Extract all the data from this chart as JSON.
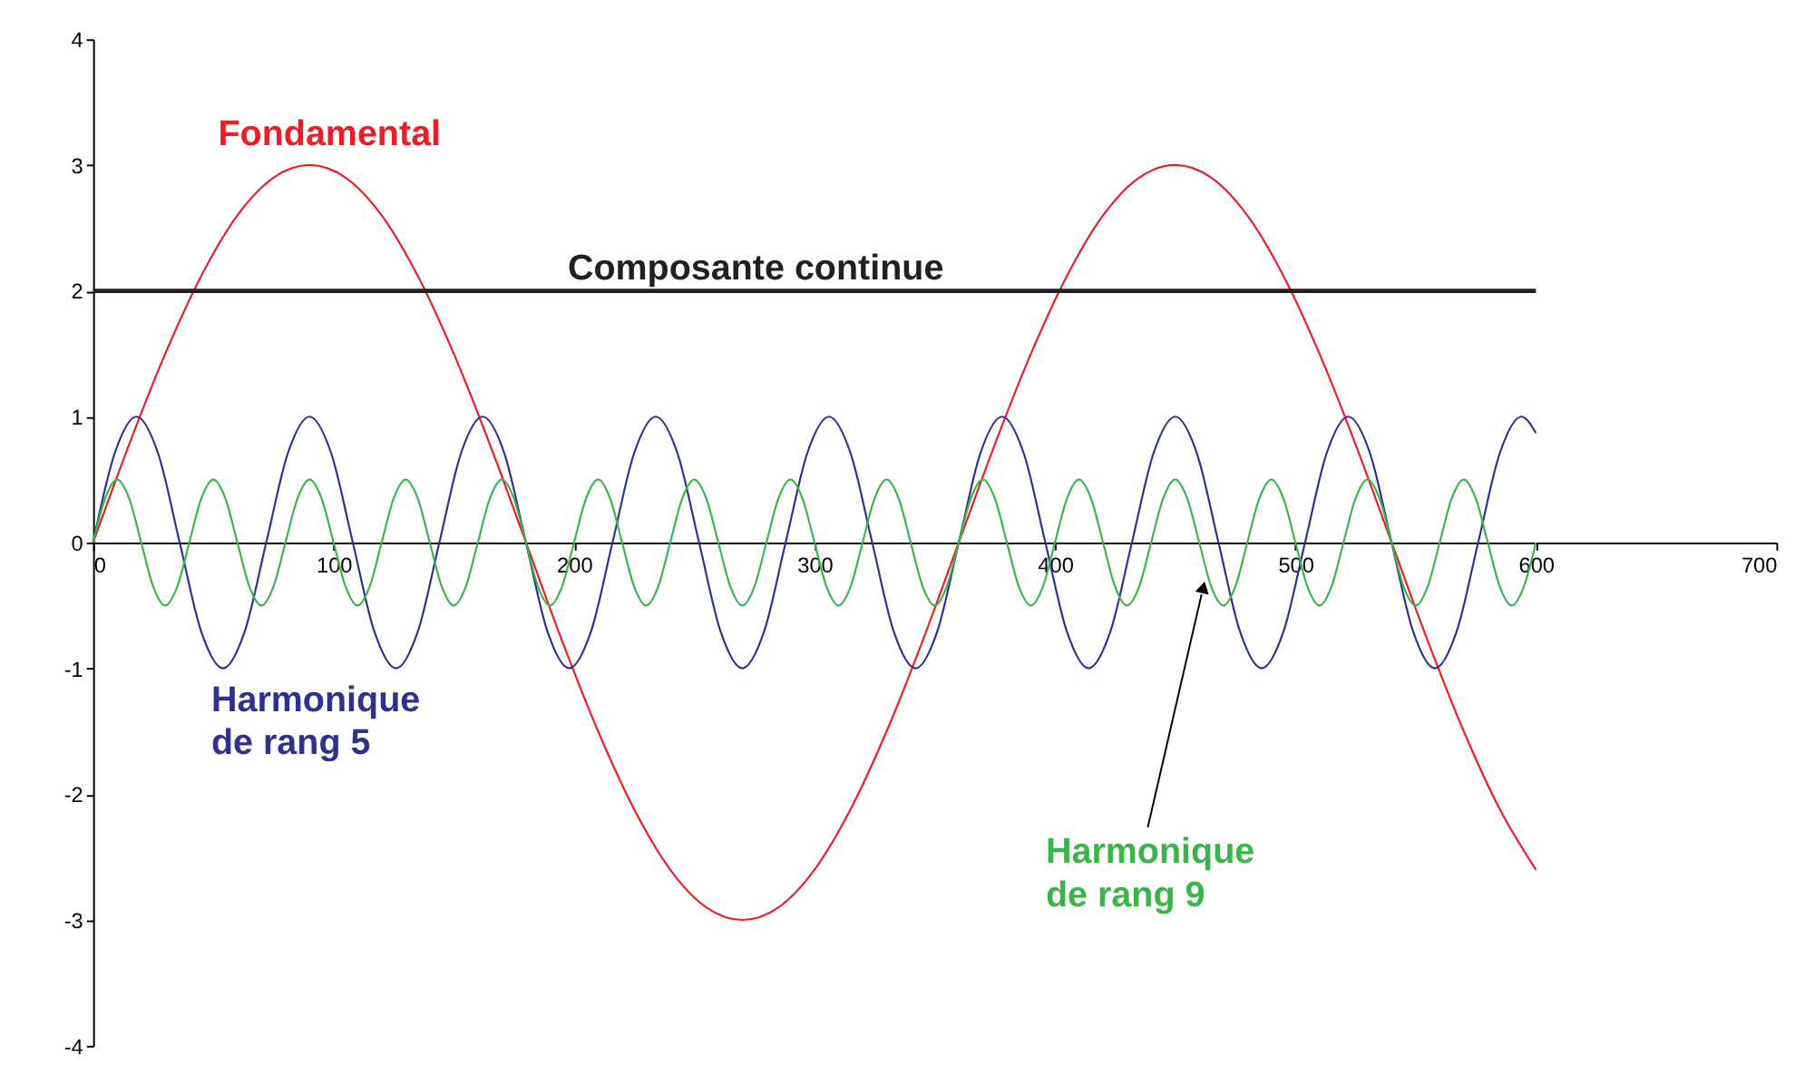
{
  "chart_data": {
    "type": "line",
    "xlim": [
      0,
      700
    ],
    "xticks": [
      0,
      100,
      200,
      300,
      400,
      500,
      600,
      700
    ],
    "ylim": [
      -4,
      4
    ],
    "yticks": [
      -4,
      -3,
      -2,
      -1,
      0,
      1,
      2,
      3,
      4
    ],
    "grid": false,
    "series": [
      {
        "name": "Fondamental",
        "color": "#ee1c25",
        "x": [
          0,
          15,
          30,
          45,
          60,
          75,
          90,
          105,
          120,
          135,
          150,
          165,
          180,
          195,
          210,
          225,
          240,
          255,
          270,
          285,
          300,
          315,
          330,
          345,
          360,
          375,
          390,
          405,
          420,
          435,
          450,
          465,
          480,
          495,
          510,
          525,
          540,
          555,
          570,
          585,
          600
        ],
        "values": [
          0,
          0.78,
          1.5,
          2.12,
          2.6,
          2.9,
          3,
          2.9,
          2.6,
          2.12,
          1.5,
          0.78,
          0,
          -0.78,
          -1.5,
          -2.12,
          -2.6,
          -2.9,
          -3,
          -2.9,
          -2.6,
          -2.12,
          -1.5,
          -0.78,
          0,
          0.78,
          1.5,
          2.12,
          2.6,
          2.9,
          3,
          2.9,
          2.6,
          2.12,
          1.5,
          0.78,
          0,
          -0.78,
          -1.5,
          -2.12,
          -2.6
        ]
      },
      {
        "name": "Composante continue",
        "color": "#231f20",
        "x": [
          0,
          600
        ],
        "values": [
          2,
          2
        ]
      },
      {
        "name": "Harmonique de rang 5",
        "color": "#2e3192",
        "x": [
          0,
          9,
          18,
          27,
          36,
          45,
          54,
          63,
          72,
          81,
          90,
          99,
          108,
          117,
          126,
          135,
          144,
          153,
          162,
          171,
          180,
          189,
          198,
          207,
          216,
          225,
          234,
          243,
          252,
          261,
          270,
          279,
          288,
          297,
          306,
          315,
          324,
          333,
          342,
          351,
          360,
          369,
          378,
          387,
          396,
          405,
          414,
          423,
          432,
          441,
          450,
          459,
          468,
          477,
          486,
          495,
          504,
          513,
          522,
          531,
          540,
          549,
          558,
          567,
          576,
          585,
          594,
          600
        ],
        "values": [
          0,
          0.71,
          1,
          0.71,
          0,
          -0.71,
          -1,
          -0.71,
          0,
          0.71,
          1,
          0.71,
          0,
          -0.71,
          -1,
          -0.71,
          0,
          0.71,
          1,
          0.71,
          0,
          -0.71,
          -1,
          -0.71,
          0,
          0.71,
          1,
          0.71,
          0,
          -0.71,
          -1,
          -0.71,
          0,
          0.71,
          1,
          0.71,
          0,
          -0.71,
          -1,
          -0.71,
          0,
          0.71,
          1,
          0.71,
          0,
          -0.71,
          -1,
          -0.71,
          0,
          0.71,
          1,
          0.71,
          0,
          -0.71,
          -1,
          -0.71,
          0,
          0.71,
          1,
          0.71,
          0,
          -0.71,
          -1,
          -0.71,
          0,
          0.71,
          1,
          0.87
        ]
      },
      {
        "name": "Harmonique de rang 9",
        "color": "#39b54a",
        "x": [
          0,
          5,
          10,
          15,
          20,
          25,
          30,
          35,
          40,
          45,
          50,
          55,
          60,
          65,
          70,
          75,
          80,
          85,
          90,
          95,
          100,
          105,
          110,
          115,
          120,
          125,
          130,
          135,
          140,
          145,
          150,
          155,
          160,
          165,
          170,
          175,
          180,
          185,
          190,
          195,
          200,
          205,
          210,
          215,
          220,
          225,
          230,
          235,
          240,
          245,
          250,
          255,
          260,
          265,
          270,
          275,
          280,
          285,
          290,
          295,
          300,
          305,
          310,
          315,
          320,
          325,
          330,
          335,
          340,
          345,
          350,
          355,
          360,
          365,
          370,
          375,
          380,
          385,
          390,
          395,
          400,
          405,
          410,
          415,
          420,
          425,
          430,
          435,
          440,
          445,
          450,
          455,
          460,
          465,
          470,
          475,
          480,
          485,
          490,
          495,
          500,
          505,
          510,
          515,
          520,
          525,
          530,
          535,
          540,
          545,
          550,
          555,
          560,
          565,
          570,
          575,
          580,
          585,
          590,
          595,
          600
        ],
        "values": [
          0,
          0.35,
          0.5,
          0.35,
          0,
          -0.35,
          -0.5,
          -0.35,
          0,
          0.35,
          0.5,
          0.35,
          0,
          -0.35,
          -0.5,
          -0.35,
          0,
          0.35,
          0.5,
          0.35,
          0,
          -0.35,
          -0.5,
          -0.35,
          0,
          0.35,
          0.5,
          0.35,
          0,
          -0.35,
          -0.5,
          -0.35,
          0,
          0.35,
          0.5,
          0.35,
          0,
          -0.35,
          -0.5,
          -0.35,
          0,
          0.35,
          0.5,
          0.35,
          0,
          -0.35,
          -0.5,
          -0.35,
          0,
          0.35,
          0.5,
          0.35,
          0,
          -0.35,
          -0.5,
          -0.35,
          0,
          0.35,
          0.5,
          0.35,
          0,
          -0.35,
          -0.5,
          -0.35,
          0,
          0.35,
          0.5,
          0.35,
          0,
          -0.35,
          -0.5,
          -0.35,
          0,
          0.35,
          0.5,
          0.35,
          0,
          -0.35,
          -0.5,
          -0.35,
          0,
          0.35,
          0.5,
          0.35,
          0,
          -0.35,
          -0.5,
          -0.35,
          0,
          0.35,
          0.5,
          0.35,
          0,
          -0.35,
          -0.5,
          -0.35,
          0,
          0.35,
          0.5,
          0.35,
          0,
          -0.35,
          -0.5,
          -0.35,
          0,
          0.35,
          0.5,
          0.35,
          0,
          -0.35,
          -0.5,
          -0.35,
          0,
          0.35,
          0.5,
          0.35,
          0,
          -0.35,
          -0.5,
          -0.35,
          0
        ]
      }
    ]
  }
}
